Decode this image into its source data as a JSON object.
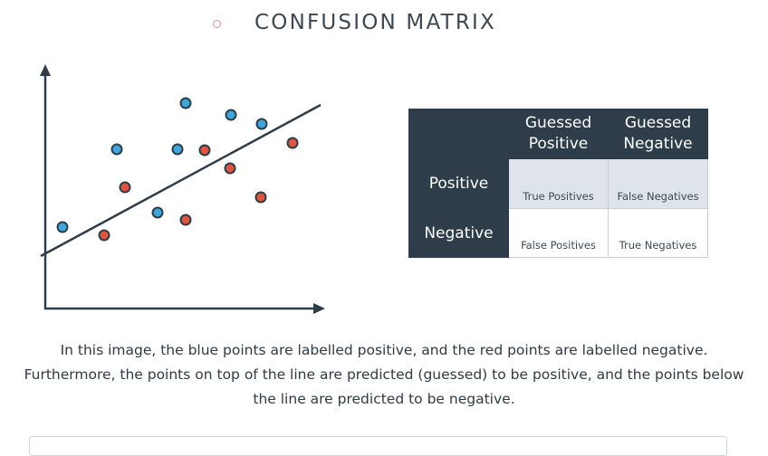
{
  "section": {
    "title": "CONFUSION MATRIX"
  },
  "points": {
    "blue_color": "#3ea6d8",
    "red_color": "#e0553e"
  },
  "matrix": {
    "col_headers": [
      [
        "Guessed",
        "Positive"
      ],
      [
        "Guessed",
        "Negative"
      ]
    ],
    "rows": [
      {
        "label": "Positive",
        "cells": [
          "True Positives",
          "False Negatives"
        ]
      },
      {
        "label": "Negative",
        "cells": [
          "False Positives",
          "True Negatives"
        ]
      }
    ],
    "header_color": "#2e3d49",
    "shade_color": "#dfe3ea"
  },
  "caption": {
    "text": "In this image, the blue points are labelled positive, and the red points are labelled negative. Furthermore, the points on top of the line are predicted (guessed) to be positive, and the points below the line are predicted to be negative."
  }
}
